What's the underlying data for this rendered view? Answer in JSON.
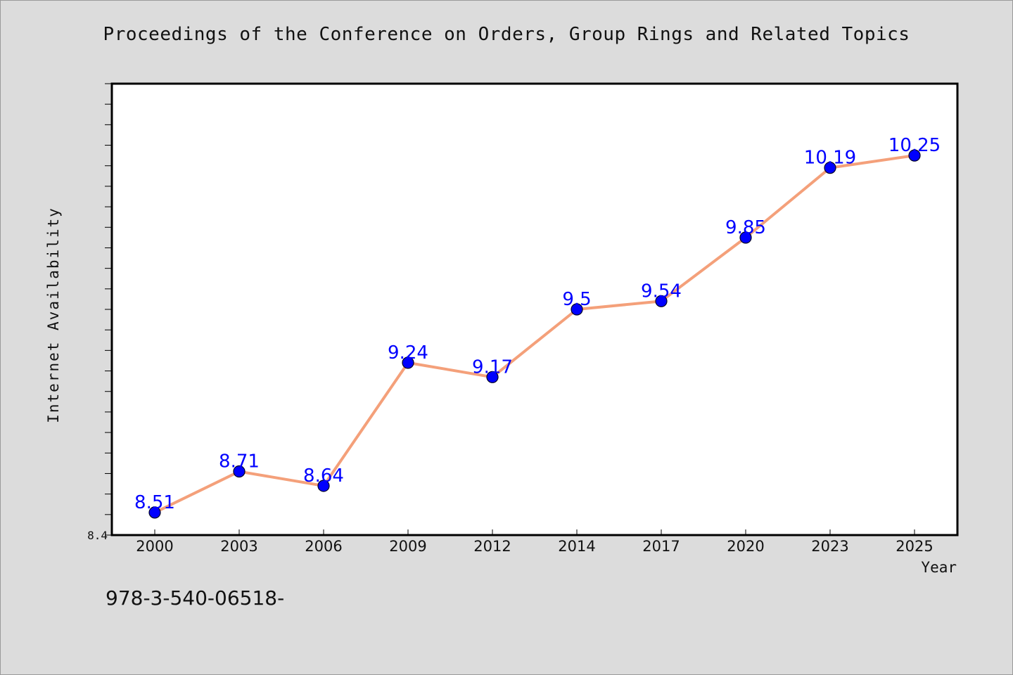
{
  "chart_data": {
    "type": "line",
    "title": "Proceedings of the Conference on Orders, Group Rings and Related Topics",
    "xlabel": "Year",
    "ylabel": "Internet Availability",
    "categories": [
      "2000",
      "2003",
      "2006",
      "2009",
      "2012",
      "2014",
      "2017",
      "2020",
      "2023",
      "2025"
    ],
    "series": [
      {
        "values": [
          8.51,
          8.71,
          8.64,
          9.24,
          9.17,
          9.5,
          9.54,
          9.85,
          10.19,
          10.25
        ],
        "labels": [
          "8.51",
          "8.71",
          "8.64",
          "9.24",
          "9.17",
          "9.5",
          "9.54",
          "9.85",
          "10.19",
          "10.25"
        ]
      }
    ],
    "ylim": [
      8.4,
      10.6
    ],
    "y_tick_labels": [
      "8.4"
    ],
    "grid": false,
    "line_color": "#f4a07a",
    "marker_color": "#0000ff",
    "data_label_color": "#0000ff",
    "background_color": "#dcdcdc",
    "plot_background": "#ffffff"
  },
  "footnote": "978-3-540-06518-"
}
